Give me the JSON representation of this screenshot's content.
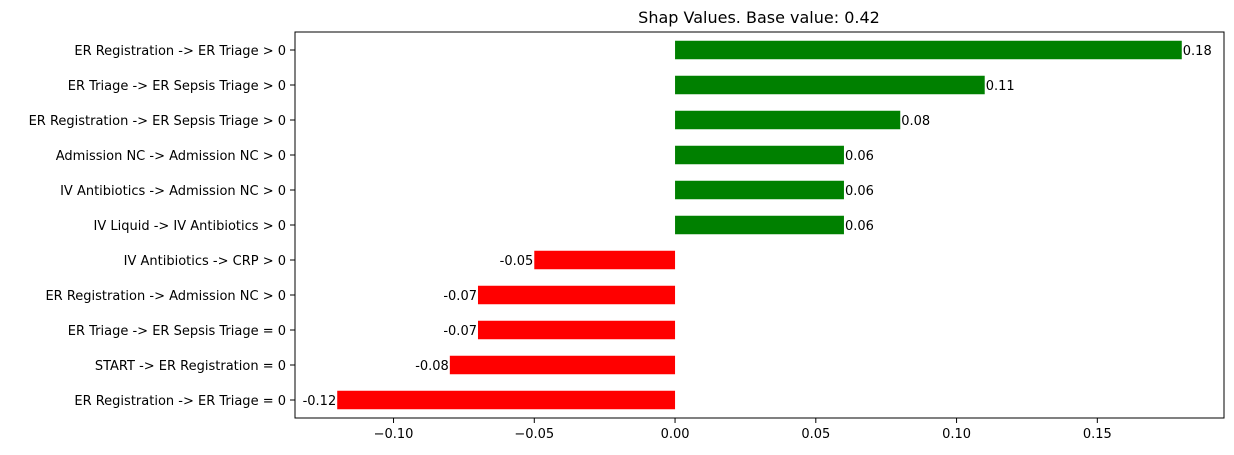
{
  "chart_data": {
    "type": "bar",
    "orientation": "horizontal",
    "title": "Shap Values. Base value: 0.42",
    "xlabel": "",
    "ylabel": "",
    "xlim": [
      -0.135,
      0.195
    ],
    "grid": false,
    "legend": "none",
    "categories": [
      "ER Registration -> ER Triage > 0",
      "ER Triage -> ER Sepsis Triage > 0",
      "ER Registration -> ER Sepsis Triage > 0",
      "Admission NC -> Admission NC > 0",
      "IV Antibiotics -> Admission NC > 0",
      "IV Liquid -> IV Antibiotics > 0",
      "IV Antibiotics -> CRP > 0",
      "ER Registration -> Admission NC > 0",
      "ER Triage -> ER Sepsis Triage = 0",
      "START -> ER Registration = 0",
      "ER Registration -> ER Triage = 0"
    ],
    "values": [
      0.18,
      0.11,
      0.08,
      0.06,
      0.06,
      0.06,
      -0.05,
      -0.07,
      -0.07,
      -0.08,
      -0.12
    ],
    "data_labels": [
      "0.18",
      "0.11",
      "0.08",
      "0.06",
      "0.06",
      "0.06",
      "-0.05",
      "-0.07",
      "-0.07",
      "-0.08",
      "-0.12"
    ],
    "x_ticks": [
      -0.1,
      -0.05,
      0.0,
      0.05,
      0.1,
      0.15
    ],
    "x_tick_labels": [
      "−0.10",
      "−0.05",
      "0.00",
      "0.05",
      "0.10",
      "0.15"
    ],
    "colors": {
      "positive": "#008000",
      "negative": "#ff0000",
      "axis": "#000000"
    }
  }
}
